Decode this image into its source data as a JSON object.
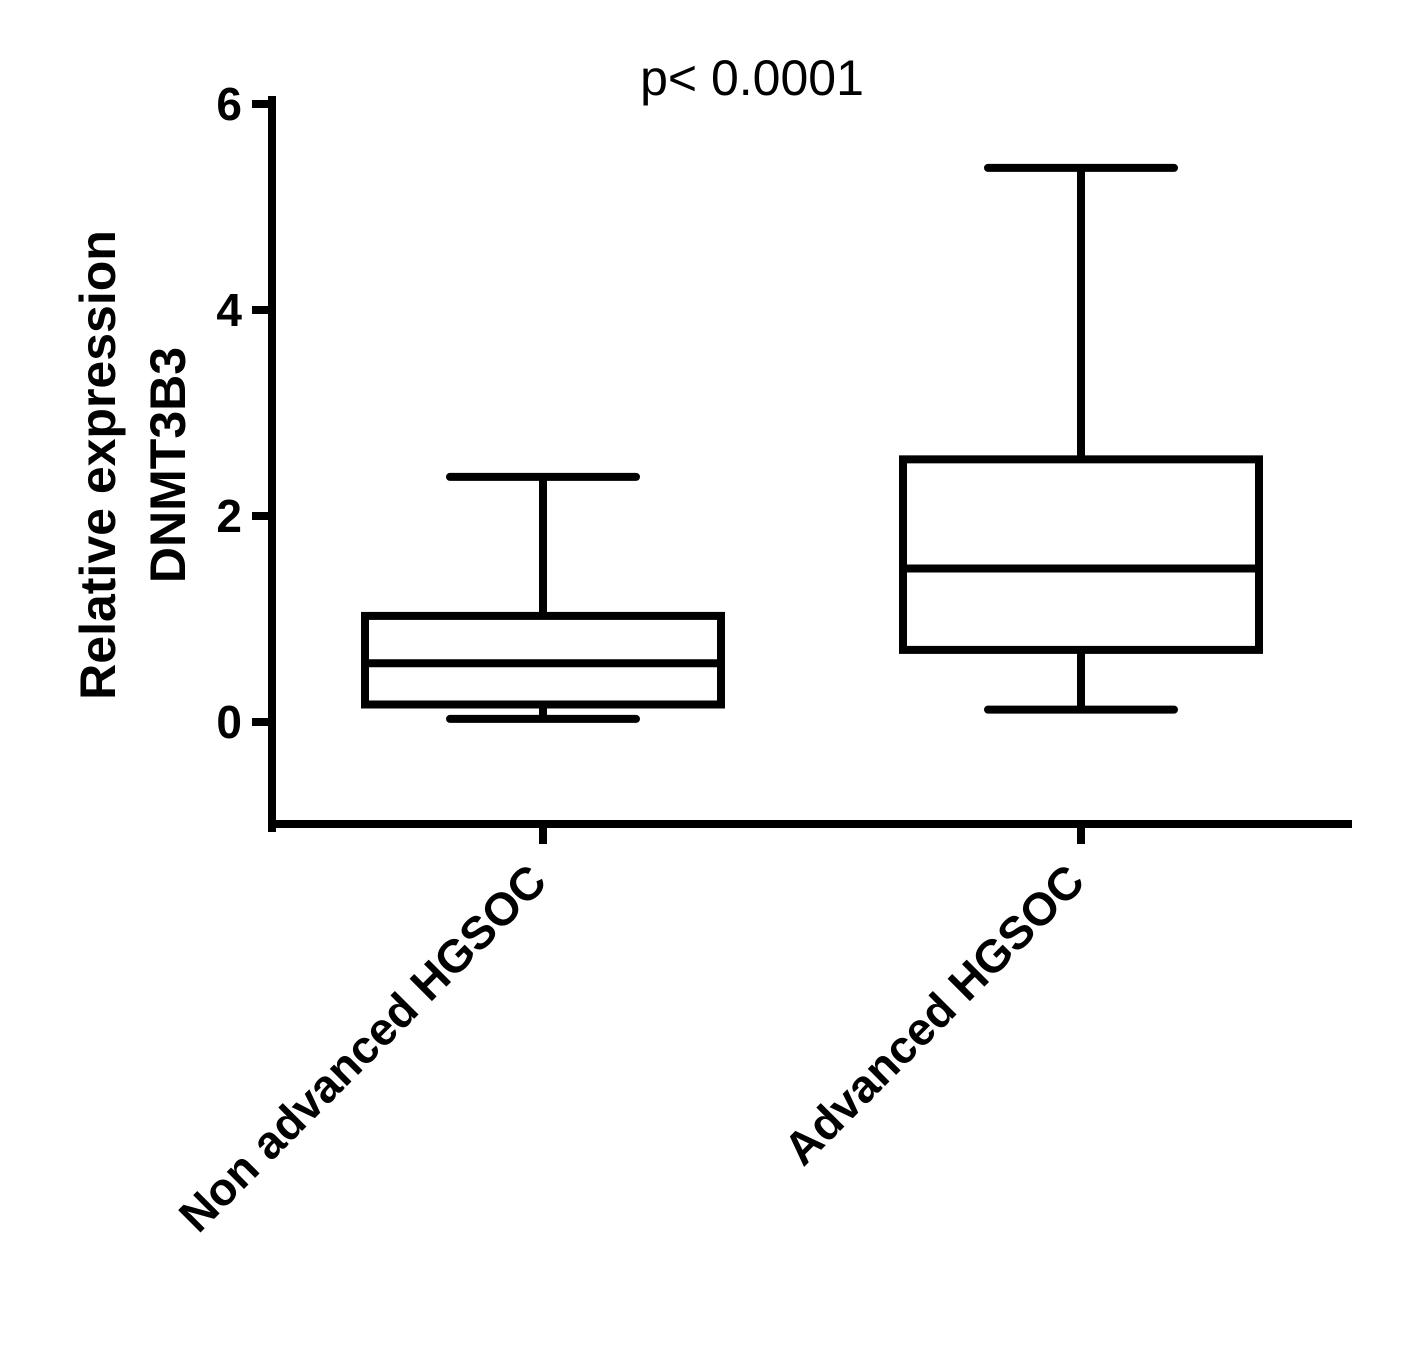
{
  "chart_data": {
    "type": "box",
    "annotation": "p< 0.0001",
    "ylabel": [
      "Relative expression",
      "DNMT3B3"
    ],
    "xlabel": "",
    "ylim": [
      -1,
      6
    ],
    "yticks": [
      "0",
      "2",
      "4",
      "6"
    ],
    "ytick_values": [
      0,
      2,
      4,
      6
    ],
    "grid": false,
    "categories": [
      "Non advanced HGSOC",
      "Advanced HGSOC"
    ],
    "boxes": [
      {
        "category": "Non advanced HGSOC",
        "min": 0.03,
        "q1": 0.17,
        "median": 0.57,
        "q3": 1.03,
        "max": 2.38
      },
      {
        "category": "Advanced HGSOC",
        "min": 0.12,
        "q1": 0.7,
        "median": 1.49,
        "q3": 2.55,
        "max": 5.38
      }
    ],
    "colors": {
      "stroke": "#000000",
      "box_fill": "#ffffff"
    }
  }
}
